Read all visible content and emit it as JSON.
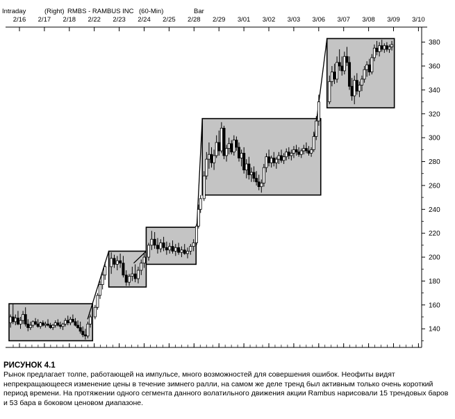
{
  "header": {
    "line1": [
      "Intraday",
      "(Right)",
      "RMBS - RAMBUS INC",
      "(60-Min)",
      "Bar"
    ]
  },
  "caption": {
    "label": "РИСУНОК 4.1",
    "text": "Рынок предлагает толпе, работающей на импульсе, много возможностей для совершения ошибок. Неофиты видят непрекращающееся изменение цены в течение зимнего ралли, на самом же деле тренд был активным только очень короткий период времени. На протяжении одного сегмента данного волатильного движения акции Rambus нарисовали 15 трендовых баров и 53 бара в боковом ценовом диапазоне."
  },
  "chart_data": {
    "type": "candlestick",
    "title": "RMBS - RAMBUS INC",
    "x_dates": [
      "2/16",
      "2/17",
      "2/18",
      "2/22",
      "2/23",
      "2/24",
      "2/25",
      "2/28",
      "2/29",
      "3/01",
      "3/02",
      "3/03",
      "3/06",
      "3/07",
      "3/08",
      "3/09",
      "3/10"
    ],
    "y_ticks": [
      140,
      160,
      180,
      200,
      220,
      240,
      260,
      280,
      300,
      320,
      340,
      360,
      380
    ],
    "ylim": [
      125,
      392
    ],
    "ranges": [
      {
        "start_day": 0.0,
        "end_day": 3.35,
        "low": 130,
        "high": 161
      },
      {
        "start_day": 4.0,
        "end_day": 5.5,
        "low": 175,
        "high": 205
      },
      {
        "start_day": 5.5,
        "end_day": 7.5,
        "low": 194,
        "high": 225
      },
      {
        "start_day": 7.75,
        "end_day": 12.5,
        "low": 252,
        "high": 316
      },
      {
        "start_day": 12.75,
        "end_day": 15.45,
        "low": 325,
        "high": 383
      }
    ],
    "trend_lines": [
      {
        "from_day": 3.15,
        "from_price": 148,
        "to_day": 4.0,
        "to_price": 205
      },
      {
        "from_day": 5.0,
        "from_price": 195,
        "to_day": 5.5,
        "to_price": 205
      },
      {
        "from_day": 7.5,
        "from_price": 213,
        "to_day": 7.75,
        "to_price": 316
      },
      {
        "from_day": 12.2,
        "from_price": 293,
        "to_day": 12.75,
        "to_price": 383
      }
    ],
    "bars": [
      {
        "day": 0.06,
        "o": 145,
        "h": 152,
        "l": 141,
        "c": 150
      },
      {
        "day": 0.16,
        "o": 150,
        "h": 161,
        "l": 144,
        "c": 146
      },
      {
        "day": 0.26,
        "o": 146,
        "h": 152,
        "l": 143,
        "c": 149
      },
      {
        "day": 0.36,
        "o": 149,
        "h": 155,
        "l": 143,
        "c": 144
      },
      {
        "day": 0.46,
        "o": 144,
        "h": 150,
        "l": 140,
        "c": 147
      },
      {
        "day": 0.56,
        "o": 147,
        "h": 155,
        "l": 144,
        "c": 152
      },
      {
        "day": 0.66,
        "o": 152,
        "h": 158,
        "l": 142,
        "c": 144
      },
      {
        "day": 0.76,
        "o": 144,
        "h": 148,
        "l": 138,
        "c": 141
      },
      {
        "day": 0.86,
        "o": 141,
        "h": 146,
        "l": 139,
        "c": 143
      },
      {
        "day": 0.96,
        "o": 143,
        "h": 147,
        "l": 141,
        "c": 146
      },
      {
        "day": 1.06,
        "o": 146,
        "h": 149,
        "l": 143,
        "c": 144
      },
      {
        "day": 1.16,
        "o": 144,
        "h": 148,
        "l": 141,
        "c": 142
      },
      {
        "day": 1.26,
        "o": 142,
        "h": 146,
        "l": 140,
        "c": 145
      },
      {
        "day": 1.36,
        "o": 145,
        "h": 147,
        "l": 142,
        "c": 143
      },
      {
        "day": 1.46,
        "o": 143,
        "h": 146,
        "l": 141,
        "c": 144
      },
      {
        "day": 1.56,
        "o": 144,
        "h": 148,
        "l": 142,
        "c": 143
      },
      {
        "day": 1.66,
        "o": 143,
        "h": 145,
        "l": 140,
        "c": 141
      },
      {
        "day": 1.76,
        "o": 141,
        "h": 144,
        "l": 139,
        "c": 143
      },
      {
        "day": 1.86,
        "o": 143,
        "h": 147,
        "l": 141,
        "c": 145
      },
      {
        "day": 1.96,
        "o": 145,
        "h": 148,
        "l": 142,
        "c": 143
      },
      {
        "day": 2.06,
        "o": 143,
        "h": 146,
        "l": 140,
        "c": 142
      },
      {
        "day": 2.16,
        "o": 142,
        "h": 145,
        "l": 139,
        "c": 144
      },
      {
        "day": 2.26,
        "o": 144,
        "h": 149,
        "l": 142,
        "c": 147
      },
      {
        "day": 2.36,
        "o": 147,
        "h": 151,
        "l": 143,
        "c": 145
      },
      {
        "day": 2.46,
        "o": 145,
        "h": 150,
        "l": 143,
        "c": 148
      },
      {
        "day": 2.56,
        "o": 148,
        "h": 152,
        "l": 145,
        "c": 146
      },
      {
        "day": 2.66,
        "o": 146,
        "h": 149,
        "l": 142,
        "c": 143
      },
      {
        "day": 2.76,
        "o": 143,
        "h": 147,
        "l": 140,
        "c": 141
      },
      {
        "day": 2.86,
        "o": 141,
        "h": 146,
        "l": 136,
        "c": 138
      },
      {
        "day": 2.96,
        "o": 138,
        "h": 142,
        "l": 133,
        "c": 135
      },
      {
        "day": 3.06,
        "o": 135,
        "h": 140,
        "l": 131,
        "c": 134
      },
      {
        "day": 3.16,
        "o": 134,
        "h": 146,
        "l": 132,
        "c": 144
      },
      {
        "day": 3.26,
        "o": 144,
        "h": 152,
        "l": 141,
        "c": 150
      },
      {
        "day": 3.45,
        "o": 150,
        "h": 160,
        "l": 148,
        "c": 158
      },
      {
        "day": 3.55,
        "o": 158,
        "h": 170,
        "l": 156,
        "c": 168
      },
      {
        "day": 3.65,
        "o": 168,
        "h": 180,
        "l": 165,
        "c": 177
      },
      {
        "day": 3.75,
        "o": 177,
        "h": 188,
        "l": 173,
        "c": 185
      },
      {
        "day": 3.85,
        "o": 185,
        "h": 196,
        "l": 181,
        "c": 192
      },
      {
        "day": 4.1,
        "o": 192,
        "h": 204,
        "l": 186,
        "c": 199
      },
      {
        "day": 4.22,
        "o": 199,
        "h": 202,
        "l": 191,
        "c": 194
      },
      {
        "day": 4.34,
        "o": 194,
        "h": 201,
        "l": 189,
        "c": 197
      },
      {
        "day": 4.46,
        "o": 197,
        "h": 203,
        "l": 191,
        "c": 195
      },
      {
        "day": 4.58,
        "o": 195,
        "h": 201,
        "l": 183,
        "c": 185
      },
      {
        "day": 4.7,
        "o": 185,
        "h": 189,
        "l": 176,
        "c": 179
      },
      {
        "day": 4.82,
        "o": 179,
        "h": 186,
        "l": 176,
        "c": 184
      },
      {
        "day": 4.94,
        "o": 184,
        "h": 192,
        "l": 180,
        "c": 186
      },
      {
        "day": 5.06,
        "o": 186,
        "h": 194,
        "l": 179,
        "c": 182
      },
      {
        "day": 5.18,
        "o": 182,
        "h": 192,
        "l": 178,
        "c": 189
      },
      {
        "day": 5.3,
        "o": 189,
        "h": 198,
        "l": 185,
        "c": 195
      },
      {
        "day": 5.42,
        "o": 195,
        "h": 203,
        "l": 191,
        "c": 200
      },
      {
        "day": 5.6,
        "o": 200,
        "h": 212,
        "l": 197,
        "c": 210
      },
      {
        "day": 5.72,
        "o": 210,
        "h": 222,
        "l": 206,
        "c": 215
      },
      {
        "day": 5.84,
        "o": 215,
        "h": 221,
        "l": 207,
        "c": 210
      },
      {
        "day": 5.96,
        "o": 210,
        "h": 216,
        "l": 203,
        "c": 207
      },
      {
        "day": 6.08,
        "o": 207,
        "h": 215,
        "l": 204,
        "c": 212
      },
      {
        "day": 6.2,
        "o": 212,
        "h": 217,
        "l": 205,
        "c": 208
      },
      {
        "day": 6.32,
        "o": 208,
        "h": 213,
        "l": 202,
        "c": 206
      },
      {
        "day": 6.44,
        "o": 206,
        "h": 212,
        "l": 203,
        "c": 209
      },
      {
        "day": 6.56,
        "o": 209,
        "h": 214,
        "l": 203,
        "c": 205
      },
      {
        "day": 6.68,
        "o": 205,
        "h": 211,
        "l": 201,
        "c": 208
      },
      {
        "day": 6.8,
        "o": 208,
        "h": 212,
        "l": 202,
        "c": 204
      },
      {
        "day": 6.92,
        "o": 204,
        "h": 209,
        "l": 200,
        "c": 206
      },
      {
        "day": 7.04,
        "o": 206,
        "h": 211,
        "l": 202,
        "c": 203
      },
      {
        "day": 7.16,
        "o": 203,
        "h": 208,
        "l": 199,
        "c": 205
      },
      {
        "day": 7.28,
        "o": 205,
        "h": 211,
        "l": 202,
        "c": 209
      },
      {
        "day": 7.4,
        "o": 209,
        "h": 215,
        "l": 205,
        "c": 212
      },
      {
        "day": 7.52,
        "o": 212,
        "h": 228,
        "l": 210,
        "c": 226
      },
      {
        "day": 7.6,
        "o": 226,
        "h": 244,
        "l": 224,
        "c": 240
      },
      {
        "day": 7.68,
        "o": 240,
        "h": 252,
        "l": 237,
        "c": 249
      },
      {
        "day": 7.82,
        "o": 249,
        "h": 272,
        "l": 247,
        "c": 268
      },
      {
        "day": 7.92,
        "o": 268,
        "h": 288,
        "l": 265,
        "c": 282
      },
      {
        "day": 8.02,
        "o": 282,
        "h": 296,
        "l": 274,
        "c": 286
      },
      {
        "day": 8.12,
        "o": 286,
        "h": 292,
        "l": 275,
        "c": 279
      },
      {
        "day": 8.22,
        "o": 279,
        "h": 290,
        "l": 273,
        "c": 285
      },
      {
        "day": 8.32,
        "o": 285,
        "h": 302,
        "l": 283,
        "c": 296
      },
      {
        "day": 8.42,
        "o": 296,
        "h": 306,
        "l": 285,
        "c": 289
      },
      {
        "day": 8.52,
        "o": 289,
        "h": 313,
        "l": 287,
        "c": 308
      },
      {
        "day": 8.62,
        "o": 308,
        "h": 310,
        "l": 282,
        "c": 285
      },
      {
        "day": 8.72,
        "o": 285,
        "h": 294,
        "l": 280,
        "c": 291
      },
      {
        "day": 8.82,
        "o": 291,
        "h": 300,
        "l": 286,
        "c": 295
      },
      {
        "day": 8.92,
        "o": 295,
        "h": 298,
        "l": 286,
        "c": 288
      },
      {
        "day": 9.02,
        "o": 288,
        "h": 302,
        "l": 285,
        "c": 298
      },
      {
        "day": 9.12,
        "o": 298,
        "h": 301,
        "l": 289,
        "c": 292
      },
      {
        "day": 9.22,
        "o": 292,
        "h": 296,
        "l": 280,
        "c": 283
      },
      {
        "day": 9.32,
        "o": 283,
        "h": 290,
        "l": 276,
        "c": 287
      },
      {
        "day": 9.42,
        "o": 287,
        "h": 292,
        "l": 270,
        "c": 273
      },
      {
        "day": 9.52,
        "o": 273,
        "h": 282,
        "l": 266,
        "c": 278
      },
      {
        "day": 9.62,
        "o": 278,
        "h": 284,
        "l": 265,
        "c": 269
      },
      {
        "day": 9.72,
        "o": 269,
        "h": 275,
        "l": 263,
        "c": 271
      },
      {
        "day": 9.82,
        "o": 271,
        "h": 276,
        "l": 263,
        "c": 266
      },
      {
        "day": 9.92,
        "o": 266,
        "h": 272,
        "l": 260,
        "c": 263
      },
      {
        "day": 10.02,
        "o": 263,
        "h": 269,
        "l": 256,
        "c": 259
      },
      {
        "day": 10.12,
        "o": 259,
        "h": 265,
        "l": 254,
        "c": 262
      },
      {
        "day": 10.22,
        "o": 262,
        "h": 278,
        "l": 259,
        "c": 275
      },
      {
        "day": 10.32,
        "o": 275,
        "h": 287,
        "l": 271,
        "c": 284
      },
      {
        "day": 10.42,
        "o": 284,
        "h": 290,
        "l": 276,
        "c": 279
      },
      {
        "day": 10.52,
        "o": 279,
        "h": 285,
        "l": 275,
        "c": 283
      },
      {
        "day": 10.62,
        "o": 283,
        "h": 288,
        "l": 276,
        "c": 279
      },
      {
        "day": 10.72,
        "o": 279,
        "h": 284,
        "l": 274,
        "c": 282
      },
      {
        "day": 10.82,
        "o": 282,
        "h": 288,
        "l": 278,
        "c": 285
      },
      {
        "day": 10.92,
        "o": 285,
        "h": 290,
        "l": 279,
        "c": 281
      },
      {
        "day": 11.02,
        "o": 281,
        "h": 287,
        "l": 278,
        "c": 284
      },
      {
        "day": 11.12,
        "o": 284,
        "h": 291,
        "l": 281,
        "c": 288
      },
      {
        "day": 11.22,
        "o": 288,
        "h": 292,
        "l": 282,
        "c": 285
      },
      {
        "day": 11.32,
        "o": 285,
        "h": 290,
        "l": 281,
        "c": 287
      },
      {
        "day": 11.42,
        "o": 287,
        "h": 293,
        "l": 283,
        "c": 290
      },
      {
        "day": 11.52,
        "o": 290,
        "h": 294,
        "l": 285,
        "c": 288
      },
      {
        "day": 11.62,
        "o": 288,
        "h": 292,
        "l": 284,
        "c": 286
      },
      {
        "day": 11.72,
        "o": 286,
        "h": 291,
        "l": 283,
        "c": 289
      },
      {
        "day": 11.82,
        "o": 289,
        "h": 294,
        "l": 286,
        "c": 291
      },
      {
        "day": 11.92,
        "o": 291,
        "h": 296,
        "l": 287,
        "c": 289
      },
      {
        "day": 12.02,
        "o": 289,
        "h": 293,
        "l": 285,
        "c": 287
      },
      {
        "day": 12.12,
        "o": 287,
        "h": 292,
        "l": 284,
        "c": 290
      },
      {
        "day": 12.22,
        "o": 290,
        "h": 305,
        "l": 288,
        "c": 301
      },
      {
        "day": 12.32,
        "o": 301,
        "h": 318,
        "l": 298,
        "c": 314
      },
      {
        "day": 12.42,
        "o": 314,
        "h": 336,
        "l": 310,
        "c": 330
      },
      {
        "day": 12.85,
        "o": 330,
        "h": 352,
        "l": 328,
        "c": 347
      },
      {
        "day": 12.95,
        "o": 347,
        "h": 360,
        "l": 343,
        "c": 355
      },
      {
        "day": 13.05,
        "o": 355,
        "h": 362,
        "l": 345,
        "c": 349
      },
      {
        "day": 13.15,
        "o": 349,
        "h": 368,
        "l": 346,
        "c": 363
      },
      {
        "day": 13.25,
        "o": 363,
        "h": 374,
        "l": 356,
        "c": 360
      },
      {
        "day": 13.35,
        "o": 360,
        "h": 368,
        "l": 352,
        "c": 356
      },
      {
        "day": 13.45,
        "o": 356,
        "h": 372,
        "l": 353,
        "c": 368
      },
      {
        "day": 13.55,
        "o": 368,
        "h": 376,
        "l": 360,
        "c": 363
      },
      {
        "day": 13.65,
        "o": 363,
        "h": 368,
        "l": 340,
        "c": 343
      },
      {
        "day": 13.75,
        "o": 343,
        "h": 350,
        "l": 331,
        "c": 335
      },
      {
        "day": 13.85,
        "o": 335,
        "h": 352,
        "l": 328,
        "c": 348
      },
      {
        "day": 13.95,
        "o": 348,
        "h": 354,
        "l": 336,
        "c": 339
      },
      {
        "day": 14.05,
        "o": 339,
        "h": 347,
        "l": 334,
        "c": 344
      },
      {
        "day": 14.15,
        "o": 344,
        "h": 352,
        "l": 339,
        "c": 349
      },
      {
        "day": 14.25,
        "o": 349,
        "h": 360,
        "l": 346,
        "c": 357
      },
      {
        "day": 14.35,
        "o": 357,
        "h": 364,
        "l": 351,
        "c": 361
      },
      {
        "day": 14.45,
        "o": 361,
        "h": 366,
        "l": 352,
        "c": 355
      },
      {
        "day": 14.55,
        "o": 355,
        "h": 370,
        "l": 353,
        "c": 367
      },
      {
        "day": 14.65,
        "o": 367,
        "h": 378,
        "l": 364,
        "c": 375
      },
      {
        "day": 14.75,
        "o": 375,
        "h": 381,
        "l": 369,
        "c": 372
      },
      {
        "day": 14.85,
        "o": 372,
        "h": 380,
        "l": 368,
        "c": 377
      },
      {
        "day": 14.95,
        "o": 377,
        "h": 382,
        "l": 372,
        "c": 374
      },
      {
        "day": 15.05,
        "o": 374,
        "h": 379,
        "l": 371,
        "c": 377
      },
      {
        "day": 15.15,
        "o": 377,
        "h": 380,
        "l": 372,
        "c": 374
      },
      {
        "day": 15.25,
        "o": 374,
        "h": 378,
        "l": 371,
        "c": 376
      },
      {
        "day": 15.35,
        "o": 376,
        "h": 381,
        "l": 373,
        "c": 378
      }
    ],
    "colors": {
      "range_fill": "#c4c4c4",
      "up_fill": "#ffffff",
      "down_fill": "#000000",
      "line": "#000000"
    }
  }
}
